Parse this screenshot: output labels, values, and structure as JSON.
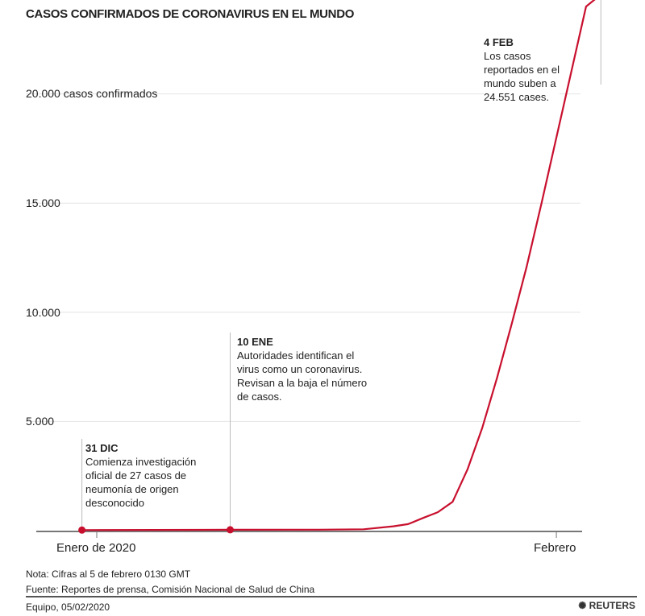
{
  "chart_data": {
    "type": "line",
    "title": "CASOS CONFIRMADOS DE CORONAVIRUS EN EL MUNDO",
    "xlabel": "",
    "ylabel": "casos confirmados",
    "x_unit": "days since 1 Jan 2020",
    "ylim": [
      0,
      24300
    ],
    "y_ticks": [
      {
        "value": 5000,
        "label": "5.000"
      },
      {
        "value": 10000,
        "label": "10.000"
      },
      {
        "value": 15000,
        "label": "15.000"
      },
      {
        "value": 20000,
        "label": "20.000 casos confirmados"
      }
    ],
    "x_ticks": [
      {
        "value": 0,
        "label": "Enero de 2020"
      },
      {
        "value": 31,
        "label": "Febrero"
      }
    ],
    "grid": true,
    "series": [
      {
        "name": "Casos confirmados",
        "color": "#c8102e",
        "x": [
          -1,
          9,
          15,
          18,
          20,
          21,
          22,
          23,
          24,
          25,
          26,
          27,
          28,
          29,
          30,
          31,
          32,
          33,
          34
        ],
        "y": [
          27,
          41,
          45,
          62,
          200,
          300,
          580,
          845,
          1320,
          2800,
          4700,
          7000,
          9500,
          12100,
          15000,
          18000,
          21000,
          24000,
          24551
        ]
      }
    ],
    "markers": [
      {
        "x": -1,
        "y": 27
      },
      {
        "x": 9,
        "y": 41
      }
    ],
    "annotations": [
      {
        "x": -1,
        "heading": "31 DIC",
        "lines": [
          "Comienza investigación",
          "oficial de 27 casos de",
          "neumonía de origen",
          "desconocido"
        ]
      },
      {
        "x": 9,
        "heading": "10 ENE",
        "lines": [
          "Autoridades identifican el",
          "virus como un coronavirus.",
          "Revisan a la baja el número",
          "de casos."
        ]
      },
      {
        "x": 34,
        "heading": "4 FEB",
        "lines": [
          "Los casos",
          "reportados en el",
          "mundo suben a",
          "24.551 cases."
        ]
      }
    ]
  },
  "footer": {
    "note": "Nota: Cifras al 5 de febrero 0130 GMT",
    "source": "Fuente: Reportes de prensa, Comisión Nacional de Salud de China",
    "credit": "Equipo,  05/02/2020",
    "brand": "REUTERS"
  }
}
